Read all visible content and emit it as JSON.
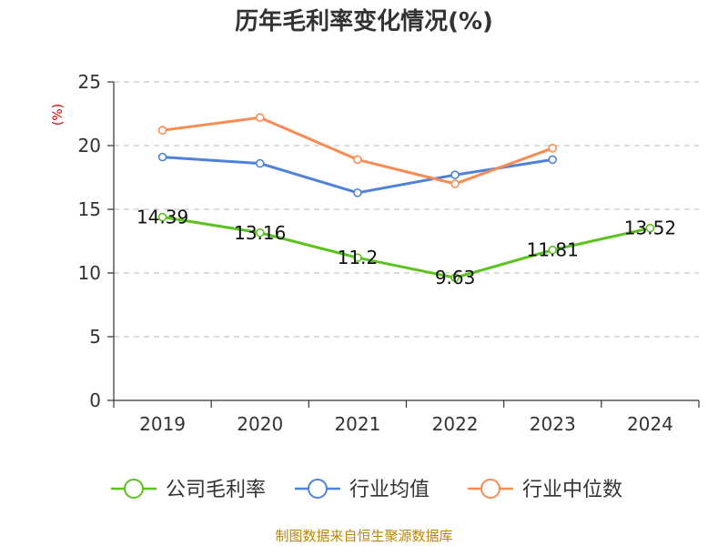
{
  "chart_data": {
    "type": "line",
    "title": "历年毛利率变化情况(%)",
    "ylabel": "(%)",
    "xlabel": "",
    "categories": [
      "2019",
      "2020",
      "2021",
      "2022",
      "2023",
      "2024"
    ],
    "ylim": [
      0,
      25
    ],
    "yticks": [
      0,
      5,
      10,
      15,
      20,
      25
    ],
    "grid": true,
    "legend_position": "bottom",
    "series": [
      {
        "name": "公司毛利率",
        "color": "#5bc21e",
        "values": [
          14.39,
          13.16,
          11.2,
          9.63,
          11.81,
          13.52
        ],
        "labels": [
          "14.39",
          "13.16",
          "11.2",
          "9.63",
          "11.81",
          "13.52"
        ]
      },
      {
        "name": "行业均值",
        "color": "#4f81d9",
        "values": [
          19.1,
          18.6,
          16.3,
          17.7,
          18.9,
          null
        ]
      },
      {
        "name": "行业中位数",
        "color": "#f78c55",
        "values": [
          21.2,
          22.2,
          18.9,
          17.0,
          19.8,
          null
        ]
      }
    ]
  },
  "source": "制图数据来自恒生聚源数据库"
}
